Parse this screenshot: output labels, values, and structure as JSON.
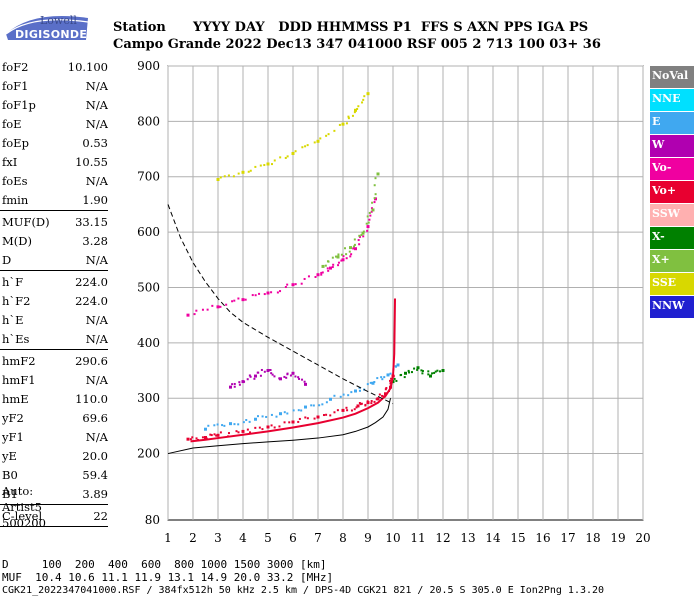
{
  "logo": {
    "brand": "Lowell",
    "name": "DIGISONDE"
  },
  "header": {
    "row1": "Station      YYYY DAY   DDD HHMMSS P1  FFS S AXN PPS IGA PS",
    "row2": "Campo Grande 2022 Dec13 347 041000 RSF 005 2 713 100 03+ 36"
  },
  "params": [
    {
      "label": "foF2",
      "value": "10.100"
    },
    {
      "label": "foF1",
      "value": "N/A"
    },
    {
      "label": "foF1p",
      "value": "N/A"
    },
    {
      "label": "foE",
      "value": "N/A"
    },
    {
      "label": "foEp",
      "value": "0.53"
    },
    {
      "label": "fxI",
      "value": "10.55"
    },
    {
      "label": "foEs",
      "value": "N/A"
    },
    {
      "label": "fmin",
      "value": "1.90"
    },
    {
      "label": "MUF(D)",
      "value": "33.15"
    },
    {
      "label": "M(D)",
      "value": "3.28"
    },
    {
      "label": "D",
      "value": "N/A"
    },
    {
      "label": "h`F",
      "value": "224.0"
    },
    {
      "label": "h`F2",
      "value": "224.0"
    },
    {
      "label": "h`E",
      "value": "N/A"
    },
    {
      "label": "h`Es",
      "value": "N/A"
    },
    {
      "label": "hmF2",
      "value": "290.6"
    },
    {
      "label": "hmF1",
      "value": "N/A"
    },
    {
      "label": "hmE",
      "value": "110.0"
    },
    {
      "label": "yF2",
      "value": "69.6"
    },
    {
      "label": "yF1",
      "value": "N/A"
    },
    {
      "label": "yE",
      "value": "20.0"
    },
    {
      "label": "B0",
      "value": "59.4"
    },
    {
      "label": "B1",
      "value": "3.89"
    },
    {
      "label": "C-level",
      "value": "22"
    }
  ],
  "auto": {
    "line1": "Auto:",
    "line2": "Artist5",
    "line3": "500200"
  },
  "legend": [
    {
      "label": "NoVal",
      "color": "#808080"
    },
    {
      "label": "NNE",
      "color": "#00e0ff"
    },
    {
      "label": "E",
      "color": "#40a8f0"
    },
    {
      "label": "W",
      "color": "#b000b0"
    },
    {
      "label": "Vo-",
      "color": "#f000a0"
    },
    {
      "label": "Vo+",
      "color": "#e80030"
    },
    {
      "label": "SSW",
      "color": "#ffb0b0"
    },
    {
      "label": "X-",
      "color": "#008000"
    },
    {
      "label": "X+",
      "color": "#80c040"
    },
    {
      "label": "SSE",
      "color": "#d8d800"
    },
    {
      "label": "NNW",
      "color": "#2020d0"
    }
  ],
  "footer": {
    "line1": "D     100  200  400  600  800 1000 1500 3000 [km]",
    "line2": "MUF  10.4 10.6 11.1 11.9 13.1 14.9 20.0 33.2 [MHz]",
    "line3": "CGK21_2022347041000.RSF / 384fx512h 50 kHz 2.5 km / DPS-4D CGK21 821 / 20.5 S 305.0 E Ion2Png 1.3.20"
  },
  "chart_data": {
    "type": "scatter",
    "xlim": [
      1,
      20
    ],
    "ylim": [
      80,
      900
    ],
    "xticks": [
      "1",
      "2",
      "3",
      "4",
      "5",
      "6",
      "7",
      "8",
      "9",
      "10",
      "11",
      "12",
      "13",
      "14",
      "15",
      "16",
      "17",
      "18",
      "19",
      "20"
    ],
    "yticks": [
      "80",
      "200",
      "300",
      "400",
      "500",
      "600",
      "700",
      "800",
      "900"
    ],
    "grid": true,
    "series": [
      {
        "name": "Vo+",
        "color": "#e80030",
        "x": [
          1.8,
          2.5,
          3.0,
          4.0,
          5.0,
          6.0,
          7.0,
          8.0,
          8.6,
          9.0,
          9.4,
          9.7,
          9.9,
          10.0
        ],
        "y": [
          226,
          229,
          233,
          240,
          248,
          257,
          266,
          278,
          286,
          292,
          299,
          308,
          320,
          340
        ]
      },
      {
        "name": "E",
        "color": "#40a8f0",
        "x": [
          2.5,
          3.5,
          4.5,
          5.5,
          6.5,
          7.5,
          8.5,
          9.2,
          9.8,
          10.2
        ],
        "y": [
          244,
          254,
          262,
          272,
          284,
          298,
          313,
          327,
          342,
          360
        ]
      },
      {
        "name": "Vo-",
        "color": "#f000a0",
        "x": [
          1.8,
          3.0,
          4.0,
          5.0,
          6.0,
          7.0,
          7.5,
          8.0,
          8.5,
          9.0,
          9.3
        ],
        "y": [
          450,
          465,
          478,
          490,
          505,
          523,
          535,
          550,
          570,
          610,
          660
        ]
      },
      {
        "name": "X+",
        "color": "#80c040",
        "x": [
          7.2,
          7.8,
          8.3,
          8.8,
          9.2,
          9.4
        ],
        "y": [
          538,
          555,
          572,
          598,
          640,
          705
        ]
      },
      {
        "name": "SSE",
        "color": "#d8d800",
        "x": [
          3.0,
          4.0,
          5.0,
          6.0,
          7.0,
          8.0,
          8.5,
          9.0
        ],
        "y": [
          695,
          708,
          723,
          742,
          764,
          795,
          820,
          850
        ]
      },
      {
        "name": "W",
        "color": "#b000b0",
        "x": [
          3.5,
          4.0,
          4.5,
          5.0,
          5.5,
          6.0,
          6.5
        ],
        "y": [
          320,
          330,
          340,
          350,
          335,
          345,
          325
        ]
      },
      {
        "name": "X-",
        "color": "#008000",
        "x": [
          10.0,
          10.5,
          11.0,
          11.5,
          12.0
        ],
        "y": [
          330,
          345,
          355,
          340,
          350
        ]
      }
    ],
    "profile": {
      "x": [
        1.0,
        2.0,
        3.0,
        4.0,
        5.0,
        6.0,
        7.0,
        8.0,
        8.5,
        9.0,
        9.3,
        9.6,
        9.8,
        9.9
      ],
      "y": [
        200,
        210,
        214,
        218,
        221,
        224,
        228,
        234,
        240,
        248,
        256,
        266,
        280,
        300
      ]
    },
    "virtual_trace": {
      "x": [
        1.9,
        2.5,
        3.0,
        4.0,
        5.0,
        6.0,
        7.0,
        8.0,
        8.5,
        9.0,
        9.4,
        9.7,
        9.9,
        10.0,
        10.05,
        10.08
      ],
      "y": [
        222,
        225,
        228,
        234,
        240,
        247,
        255,
        265,
        272,
        282,
        292,
        304,
        318,
        340,
        380,
        480
      ]
    },
    "muf_curve": {
      "x": [
        1.0,
        1.5,
        2.0,
        2.5,
        3.0,
        3.5,
        4.0,
        5.0,
        6.0,
        7.0,
        8.0,
        9.0,
        10.0
      ],
      "y": [
        650,
        590,
        545,
        510,
        480,
        455,
        437,
        410,
        385,
        360,
        335,
        312,
        290
      ]
    }
  }
}
